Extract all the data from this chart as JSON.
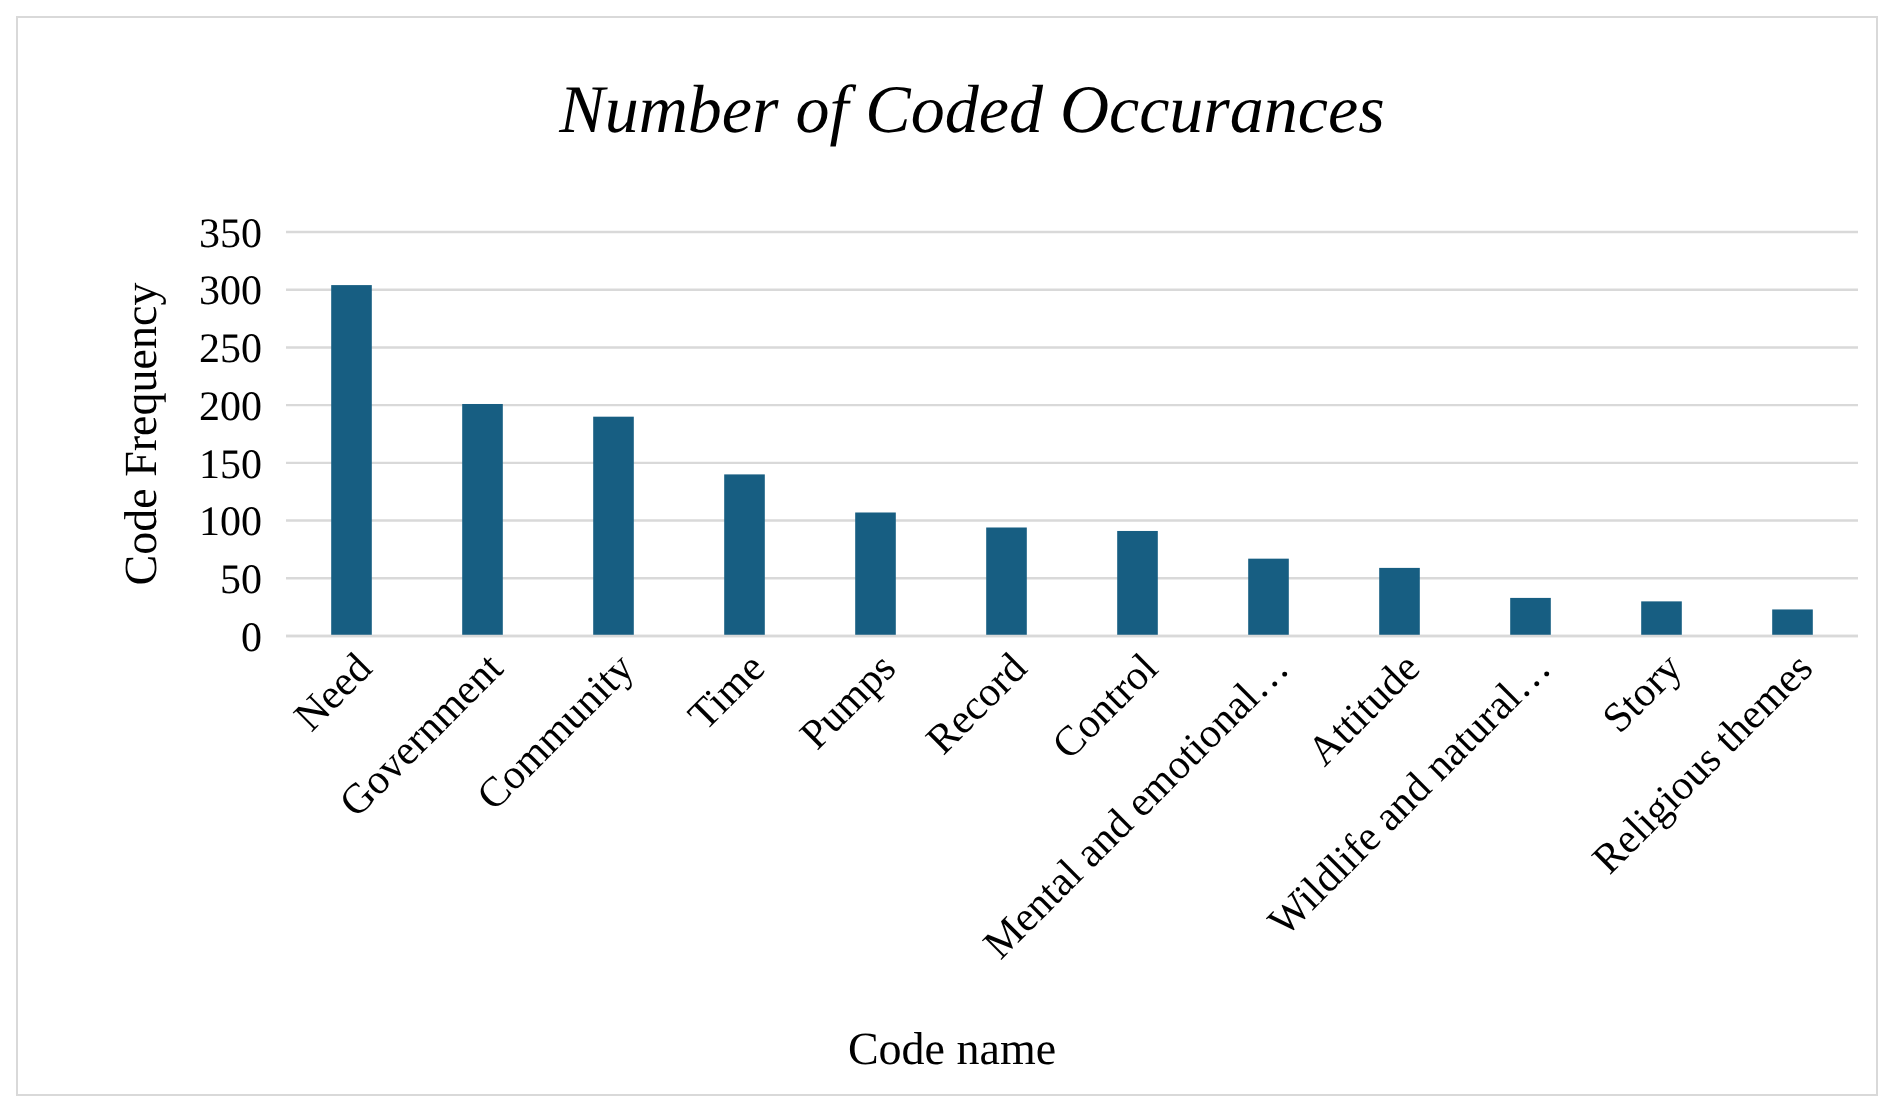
{
  "chart_data": {
    "type": "bar",
    "title": "Number of Coded Occurances",
    "xlabel": "Code name",
    "ylabel": "Code Frequency",
    "categories": [
      "Need",
      "Government",
      "Community",
      "Time",
      "Pumps",
      "Record",
      "Control",
      "Mental and emotional…",
      "Attitude",
      "Wildlife and natural…",
      "Story",
      "Religious themes"
    ],
    "values": [
      304,
      201,
      190,
      140,
      107,
      94,
      91,
      67,
      59,
      33,
      30,
      23
    ],
    "color": "#175e82",
    "ylim": [
      0,
      350
    ],
    "yticks": [
      0,
      50,
      100,
      150,
      200,
      250,
      300,
      350
    ],
    "grid": "y"
  }
}
